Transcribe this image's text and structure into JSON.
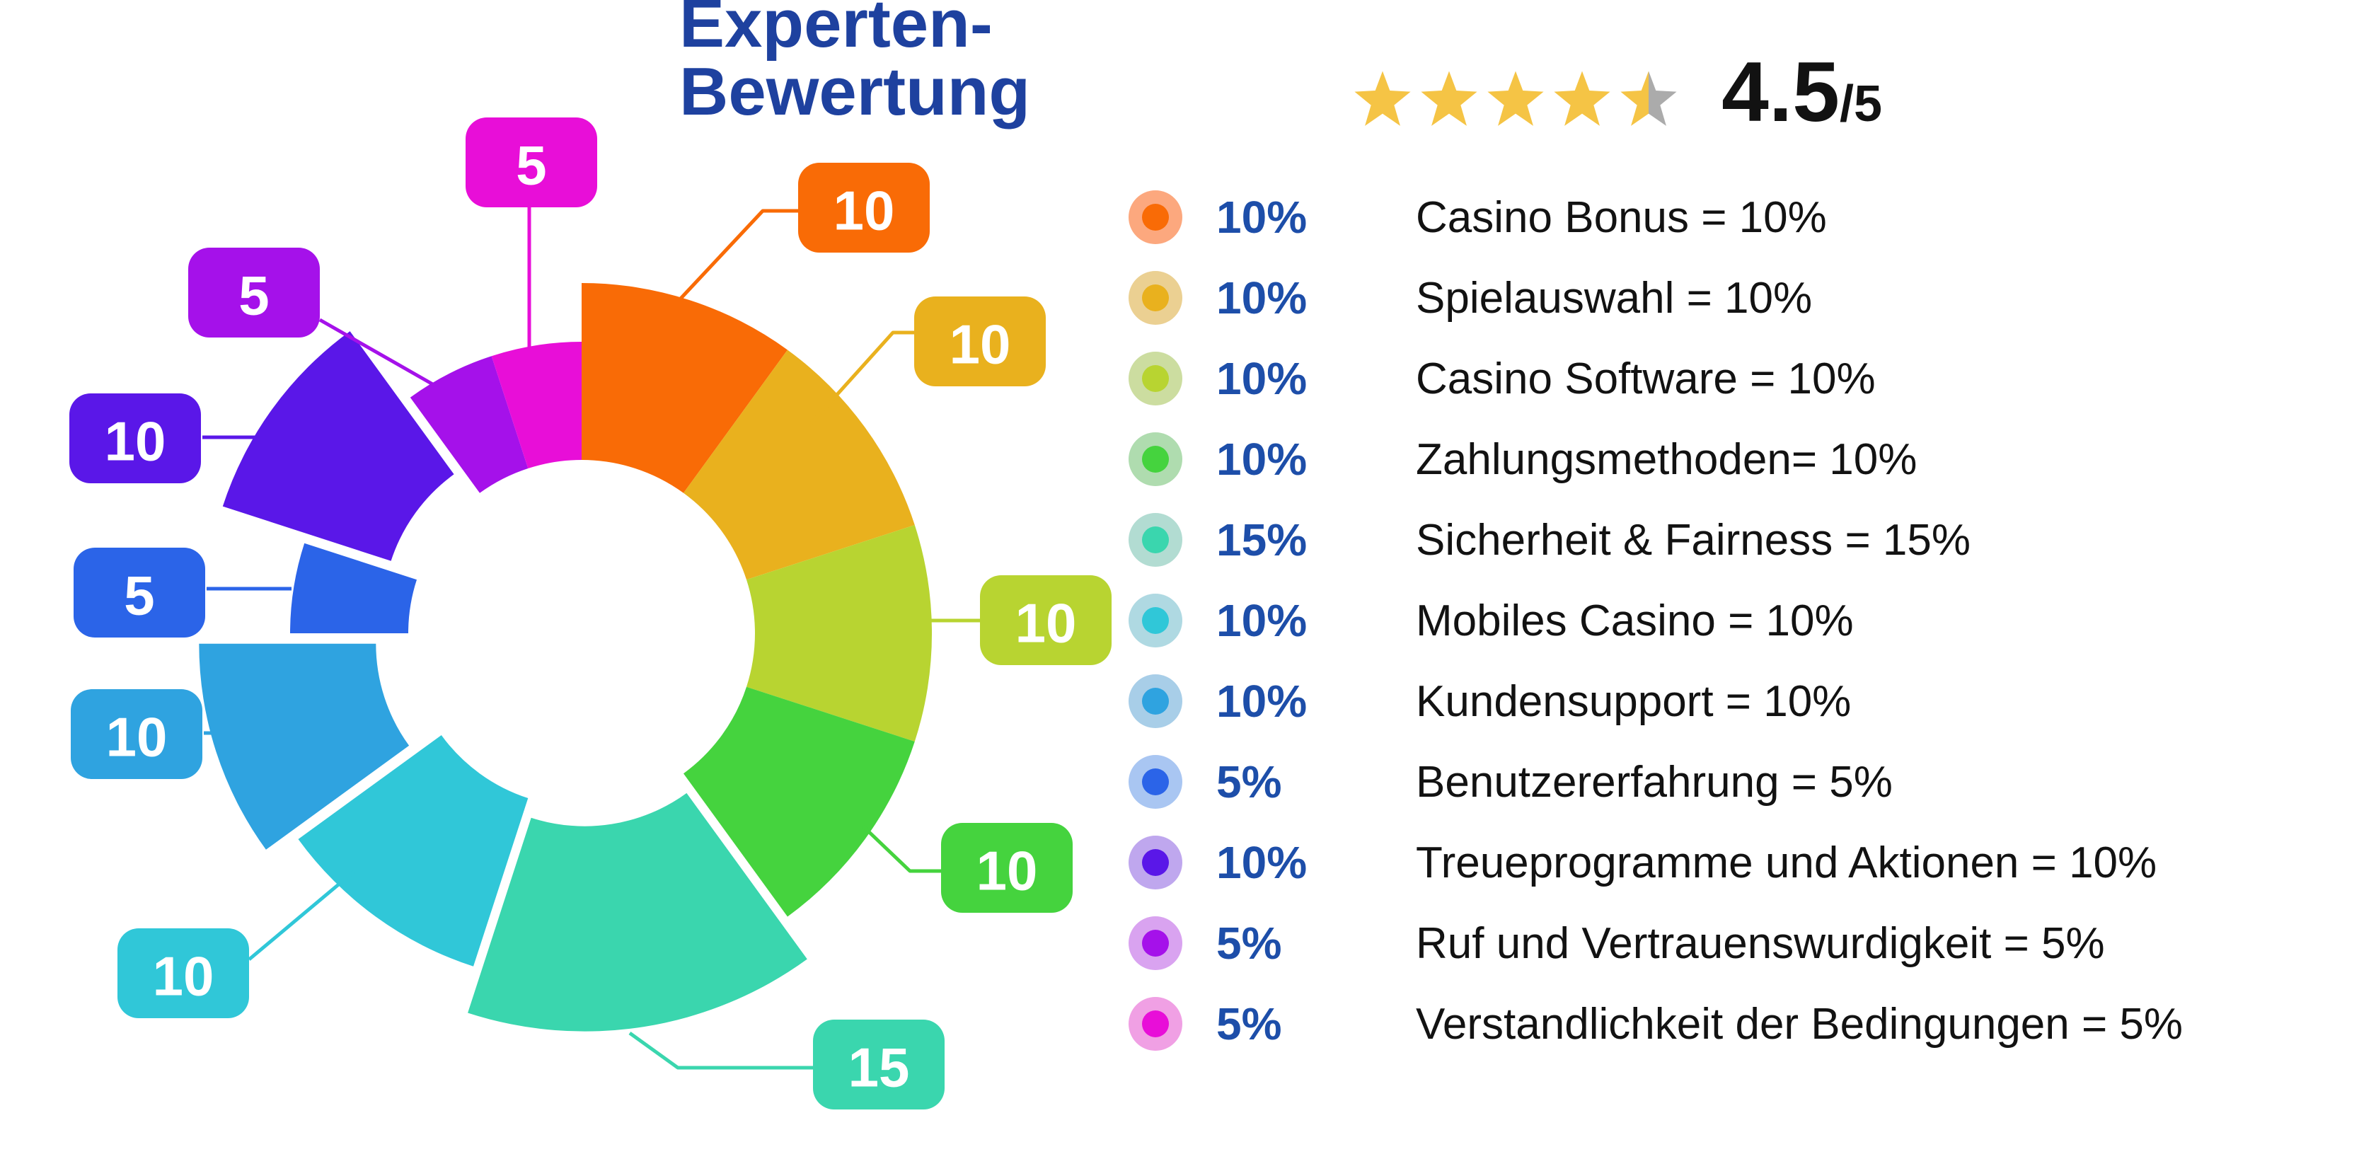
{
  "header": {
    "title": "Experten-Bewertung",
    "title_color": "#1E419F",
    "rating_value": "4.5",
    "rating_suffix": "/5",
    "stars_full": 4,
    "stars_half": 1,
    "star_color": "#F5C445",
    "star_empty_color": "#ABABAB"
  },
  "chart_data": {
    "type": "pie",
    "donut": true,
    "start_angle_deg": 0,
    "direction": "clockwise",
    "legend_position": "right",
    "total": 100,
    "title": "Experten-Bewertung",
    "categories": [
      "Casino Bonus",
      "Spielauswahl",
      "Casino Software",
      "Zahlungsmethoden",
      "Sicherheit & Fairness",
      "Mobiles Casino",
      "Kundensupport",
      "Benutzererfahrung",
      "Treueprogramme und Aktionen",
      "Ruf und Vertrauenswurdigkeit",
      "Verstandlichkeit der Bedingungen"
    ],
    "values": [
      10,
      10,
      10,
      10,
      15,
      10,
      10,
      5,
      10,
      5,
      5
    ],
    "slice_labels": [
      "10",
      "10",
      "10",
      "10",
      "15",
      "10",
      "10",
      "5",
      "10",
      "5",
      "5"
    ],
    "exploded": [
      false,
      false,
      false,
      false,
      true,
      false,
      true,
      false,
      true,
      false,
      false
    ],
    "colors": [
      "#F96B06",
      "#E9B11E",
      "#B8D431",
      "#45D33E",
      "#3AD6AE",
      "#30C7D8",
      "#2FA3E0",
      "#2B64E8",
      "#5A17E8",
      "#A511EA",
      "#E80ED8"
    ],
    "light_colors": [
      "#FCA87E",
      "#EBD092",
      "#CCDDA0",
      "#AFDCAF",
      "#B2DCD2",
      "#AFD9E2",
      "#A8CEE8",
      "#A9C6F2",
      "#BFA7EE",
      "#D9A3F0",
      "#F0A0E4"
    ]
  },
  "legend": {
    "percent_color": "#1D4EA9",
    "label_color": "#121212",
    "percent_labels": [
      "10%",
      "10%",
      "10%",
      "10%",
      "15%",
      "10%",
      "10%",
      "5%",
      "10%",
      "5%",
      "5%"
    ],
    "labels": [
      "Casino Bonus = 10%",
      "Spielauswahl = 10%",
      "Casino Software = 10%",
      "Zahlungsmethoden= 10%",
      "Sicherheit & Fairness = 15%",
      "Mobiles Casino = 10%",
      "Kundensupport = 10%",
      "Benutzererfahrung = 5%",
      "Treueprogramme und Aktionen = 10%",
      "Ruf und Vertrauenswurdigkeit = 5%",
      "Verstandlichkeit der Bedingungen = 5%"
    ]
  }
}
